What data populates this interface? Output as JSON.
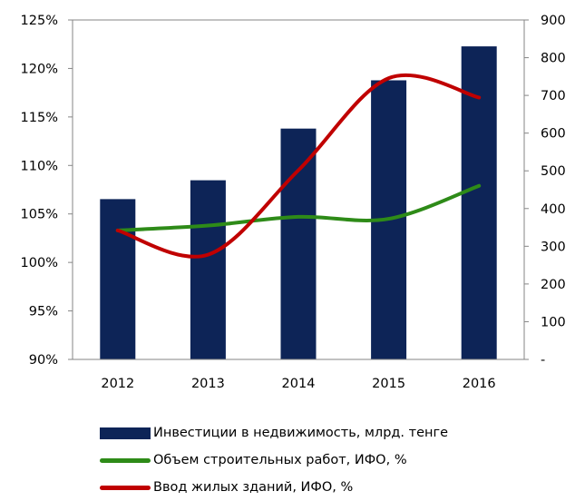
{
  "chart_data": {
    "type": "bar",
    "categories": [
      "2012",
      "2013",
      "2014",
      "2015",
      "2016"
    ],
    "series": [
      {
        "name": "Инвестиции в недвижимость, млрд. тенге",
        "type": "bar",
        "axis": "right",
        "color": "#0d2457",
        "values": [
          425,
          475,
          612,
          740,
          830
        ]
      },
      {
        "name": "Объем строительных работ, ИФО, %",
        "type": "line",
        "axis": "left",
        "color": "#2e8b18",
        "values": [
          103.3,
          103.8,
          104.7,
          104.5,
          107.9
        ]
      },
      {
        "name": "Ввод жилых зданий, ИФО, %",
        "type": "line",
        "axis": "left",
        "color": "#c00000",
        "values": [
          103.3,
          100.8,
          109.5,
          119.0,
          117.0
        ]
      }
    ],
    "y_left": {
      "range": [
        90,
        125
      ],
      "ticks": [
        90,
        95,
        100,
        105,
        110,
        115,
        120,
        125
      ],
      "tick_labels": [
        "90%",
        "95%",
        "100%",
        "105%",
        "110%",
        "115%",
        "120%",
        "125%"
      ]
    },
    "y_right": {
      "range": [
        0,
        900
      ],
      "ticks": [
        0,
        100,
        200,
        300,
        400,
        500,
        600,
        700,
        800,
        900
      ],
      "tick_labels": [
        "-",
        "100",
        "200",
        "300",
        "400",
        "500",
        "600",
        "700",
        "800",
        "900"
      ]
    },
    "grid": false,
    "legend_position": "bottom",
    "title": "",
    "xlabel": "",
    "ylabel": ""
  }
}
